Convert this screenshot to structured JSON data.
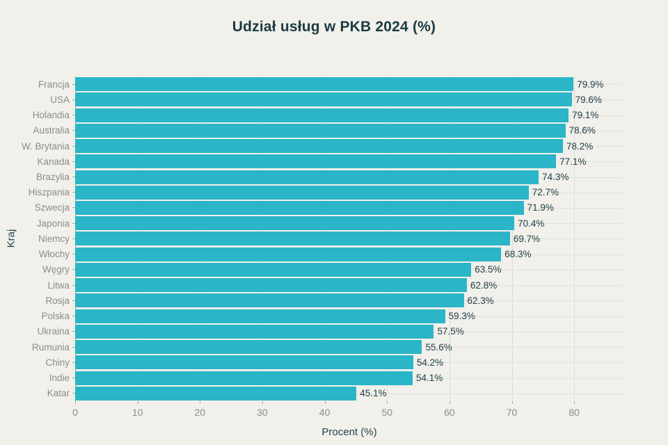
{
  "title": "Udział usług w PKB 2024 (%)",
  "x_axis_label": "Procent (%)",
  "y_axis_label": "Kraj",
  "colors": {
    "background": "#f1f0ea",
    "bar": "#2ab5c8",
    "title_text": "#1b3a44",
    "value_text": "#21404b",
    "category_text": "#8d8c85",
    "tick_text": "#8d8c85",
    "gridline_vertical": "#dddcd4",
    "gridline_horizontal": "#e3e2da",
    "axis": "#a5a49d"
  },
  "chart_data": {
    "type": "bar",
    "orientation": "horizontal",
    "title": "Udział usług w PKB 2024 (%)",
    "xlabel": "Procent (%)",
    "ylabel": "Kraj",
    "categories": [
      "Francja",
      "USA",
      "Holandia",
      "Australia",
      "W. Brytania",
      "Kanada",
      "Brazylia",
      "Hiszpania",
      "Szwecja",
      "Japonia",
      "Niemcy",
      "Włochy",
      "Węgry",
      "Litwa",
      "Rosja",
      "Polska",
      "Ukraina",
      "Rumunia",
      "Chiny",
      "Indie",
      "Katar"
    ],
    "values": [
      79.9,
      79.6,
      79.1,
      78.6,
      78.2,
      77.1,
      74.3,
      72.7,
      71.9,
      70.4,
      69.7,
      68.3,
      63.5,
      62.8,
      62.3,
      59.3,
      57.5,
      55.6,
      54.2,
      54.1,
      45.1
    ],
    "value_labels": [
      "79.9%",
      "79.6%",
      "79.1%",
      "78.6%",
      "78.2%",
      "77.1%",
      "74.3%",
      "72.7%",
      "71.9%",
      "70.4%",
      "69.7%",
      "68.3%",
      "63.5%",
      "62.8%",
      "62.3%",
      "59.3%",
      "57.5%",
      "55.6%",
      "54.2%",
      "54.1%",
      "45.1%"
    ],
    "x_ticks": [
      0,
      10,
      20,
      30,
      40,
      50,
      60,
      70,
      80
    ],
    "xlim": [
      0,
      87.9
    ],
    "grid": true,
    "legend": false,
    "value_labels_position": "end-of-bar"
  }
}
